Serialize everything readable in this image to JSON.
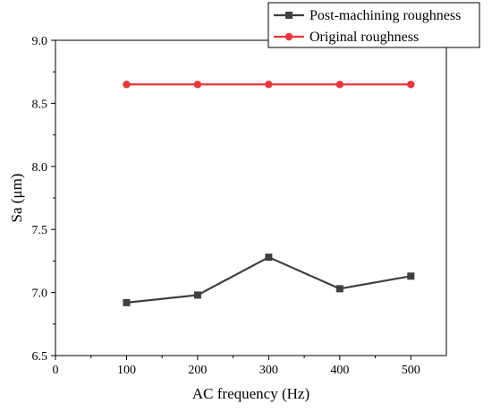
{
  "chart_data": {
    "type": "line",
    "xlabel": "AC frequency (Hz)",
    "ylabel": "Sa (μm)",
    "xlim": [
      0,
      550
    ],
    "ylim": [
      6.5,
      9.0
    ],
    "xticks": [
      0,
      100,
      200,
      300,
      400,
      500
    ],
    "yticks": [
      6.5,
      7.0,
      7.5,
      8.0,
      8.5,
      9.0
    ],
    "xtick_labels": [
      "0",
      "100",
      "200",
      "300",
      "400",
      "500"
    ],
    "ytick_labels": [
      "6.5",
      "7.0",
      "7.5",
      "8.0",
      "8.5",
      "9.0"
    ],
    "x": [
      100,
      200,
      300,
      400,
      500
    ],
    "series": [
      {
        "name": "Post-machining roughness",
        "values": [
          6.92,
          6.98,
          7.28,
          7.03,
          7.13
        ],
        "color": "#3f3f3f",
        "marker": "square"
      },
      {
        "name": "Original roughness",
        "values": [
          8.65,
          8.65,
          8.65,
          8.65,
          8.65
        ],
        "color": "#e8373b",
        "marker": "circle"
      }
    ],
    "legend_position": "top-right",
    "grid": false
  }
}
